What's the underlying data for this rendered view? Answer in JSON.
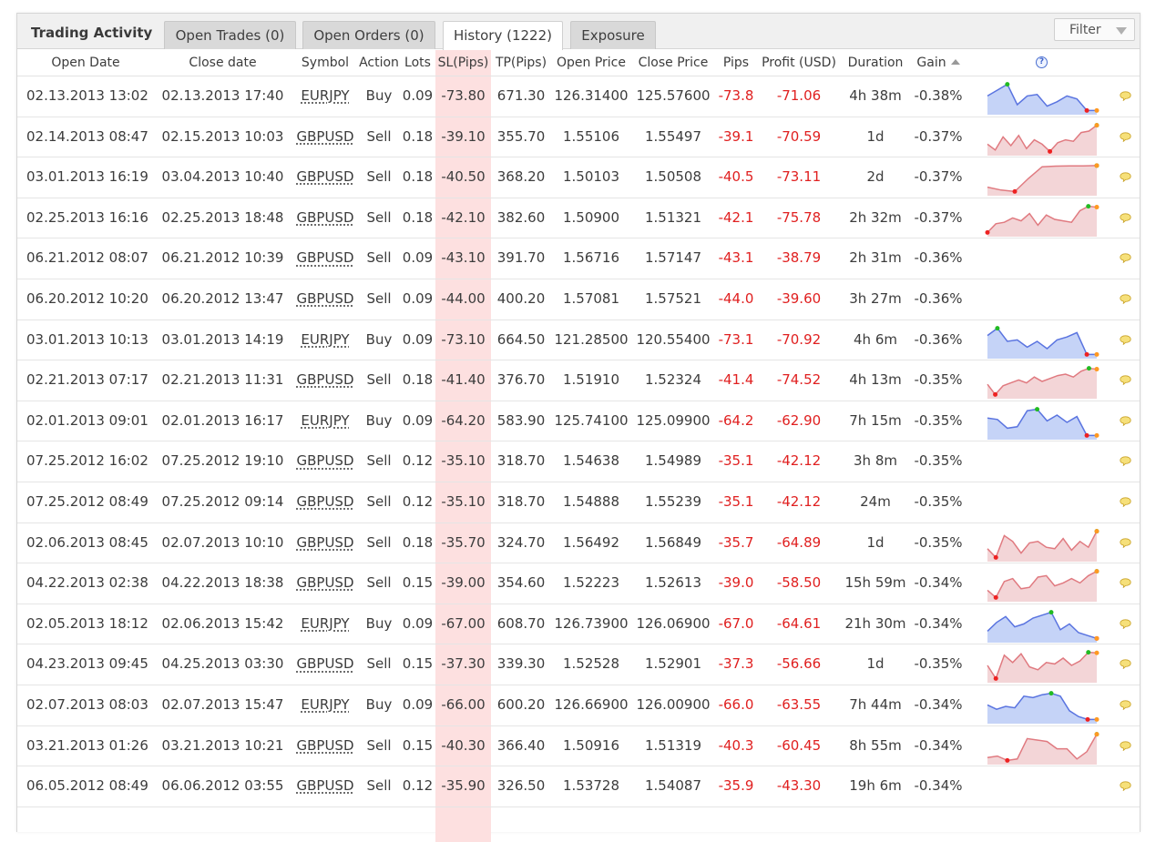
{
  "panel": {
    "title": "Trading Activity",
    "tabs": [
      {
        "label": "Open Trades (0)",
        "active": false
      },
      {
        "label": "Open Orders (0)",
        "active": false
      },
      {
        "label": "History (1222)",
        "active": true
      },
      {
        "label": "Exposure",
        "active": false
      }
    ],
    "filter_label": "Filter"
  },
  "columns": [
    "Open Date",
    "Close date",
    "Symbol",
    "Action",
    "Lots",
    "SL(Pips)",
    "TP(Pips)",
    "Open Price",
    "Close Price",
    "Pips",
    "Profit (USD)",
    "Duration",
    "Gain"
  ],
  "help_symbol": "?",
  "colors": {
    "negative": "#e02020",
    "sl_highlight": "#fde0e0",
    "spark_blue_fill": "#c5d3f7",
    "spark_blue_line": "#5a74e0",
    "spark_red_fill": "#f3d5d7",
    "spark_red_line": "#e07a80",
    "spark_max": "#22bb22",
    "spark_min": "#ee2222",
    "spark_end": "#ff9922"
  },
  "rows": [
    {
      "open_date": "02.13.2013 13:02",
      "close_date": "02.13.2013 17:40",
      "symbol": "EURJPY",
      "action": "Buy",
      "lots": "0.09",
      "sl": "-73.80",
      "tp": "671.30",
      "open_price": "126.31400",
      "close_price": "125.57600",
      "pips": "-73.8",
      "profit": "-71.06",
      "duration": "4h 38m",
      "gain": "-0.38%",
      "spark": {
        "color": "blue",
        "values": [
          0.55,
          0.75,
          0.95,
          0.25,
          0.55,
          0.6,
          0.2,
          0.35,
          0.55,
          0.45,
          0.05,
          0.05
        ]
      }
    },
    {
      "open_date": "02.14.2013 08:47",
      "close_date": "02.15.2013 10:03",
      "symbol": "GBPUSD",
      "action": "Sell",
      "lots": "0.18",
      "sl": "-39.10",
      "tp": "355.70",
      "open_price": "1.55106",
      "close_price": "1.55497",
      "pips": "-39.1",
      "profit": "-70.59",
      "duration": "1d",
      "gain": "-0.37%",
      "spark": {
        "color": "red",
        "values": [
          0.3,
          0.1,
          0.55,
          0.25,
          0.6,
          0.15,
          0.45,
          0.3,
          0.05,
          0.35,
          0.45,
          0.4,
          0.7,
          0.75,
          0.95
        ]
      }
    },
    {
      "open_date": "03.01.2013 16:19",
      "close_date": "03.04.2013 10:40",
      "symbol": "GBPUSD",
      "action": "Sell",
      "lots": "0.18",
      "sl": "-40.50",
      "tp": "368.20",
      "open_price": "1.50103",
      "close_price": "1.50508",
      "pips": "-40.5",
      "profit": "-73.11",
      "duration": "2d",
      "gain": "-0.37%",
      "spark": {
        "color": "red",
        "values": [
          0.2,
          0.1,
          0.05,
          0.5,
          0.9,
          0.92,
          0.93,
          0.93,
          0.94
        ]
      }
    },
    {
      "open_date": "02.25.2013 16:16",
      "close_date": "02.25.2013 18:48",
      "symbol": "GBPUSD",
      "action": "Sell",
      "lots": "0.18",
      "sl": "-42.10",
      "tp": "382.60",
      "open_price": "1.50900",
      "close_price": "1.51321",
      "pips": "-42.1",
      "profit": "-75.78",
      "duration": "2h 32m",
      "gain": "-0.37%",
      "spark": {
        "color": "red",
        "values": [
          0.05,
          0.35,
          0.4,
          0.55,
          0.45,
          0.7,
          0.3,
          0.65,
          0.5,
          0.45,
          0.4,
          0.8,
          0.95,
          0.92
        ]
      }
    },
    {
      "open_date": "06.21.2012 08:07",
      "close_date": "06.21.2012 10:39",
      "symbol": "GBPUSD",
      "action": "Sell",
      "lots": "0.09",
      "sl": "-43.10",
      "tp": "391.70",
      "open_price": "1.56716",
      "close_price": "1.57147",
      "pips": "-43.1",
      "profit": "-38.79",
      "duration": "2h 31m",
      "gain": "-0.36%",
      "spark": null
    },
    {
      "open_date": "06.20.2012 10:20",
      "close_date": "06.20.2012 13:47",
      "symbol": "GBPUSD",
      "action": "Sell",
      "lots": "0.09",
      "sl": "-44.00",
      "tp": "400.20",
      "open_price": "1.57081",
      "close_price": "1.57521",
      "pips": "-44.0",
      "profit": "-39.60",
      "duration": "3h 27m",
      "gain": "-0.36%",
      "spark": null
    },
    {
      "open_date": "03.01.2013 10:13",
      "close_date": "03.01.2013 14:19",
      "symbol": "EURJPY",
      "action": "Buy",
      "lots": "0.09",
      "sl": "-73.10",
      "tp": "664.50",
      "open_price": "121.28500",
      "close_price": "120.55400",
      "pips": "-73.1",
      "profit": "-70.92",
      "duration": "4h 6m",
      "gain": "-0.36%",
      "spark": {
        "color": "blue",
        "values": [
          0.7,
          0.95,
          0.5,
          0.55,
          0.3,
          0.5,
          0.25,
          0.55,
          0.65,
          0.8,
          0.05,
          0.05
        ]
      }
    },
    {
      "open_date": "02.21.2013 07:17",
      "close_date": "02.21.2013 11:31",
      "symbol": "GBPUSD",
      "action": "Sell",
      "lots": "0.18",
      "sl": "-41.40",
      "tp": "376.70",
      "open_price": "1.51910",
      "close_price": "1.52324",
      "pips": "-41.4",
      "profit": "-74.52",
      "duration": "4h 13m",
      "gain": "-0.35%",
      "spark": {
        "color": "red",
        "values": [
          0.4,
          0.05,
          0.35,
          0.45,
          0.55,
          0.45,
          0.65,
          0.5,
          0.6,
          0.7,
          0.75,
          0.65,
          0.85,
          0.95,
          0.92
        ]
      }
    },
    {
      "open_date": "02.01.2013 09:01",
      "close_date": "02.01.2013 16:17",
      "symbol": "EURJPY",
      "action": "Buy",
      "lots": "0.09",
      "sl": "-64.20",
      "tp": "583.90",
      "open_price": "125.74100",
      "close_price": "125.09900",
      "pips": "-64.2",
      "profit": "-62.90",
      "duration": "7h 15m",
      "gain": "-0.35%",
      "spark": {
        "color": "blue",
        "values": [
          0.65,
          0.6,
          0.3,
          0.35,
          0.9,
          0.95,
          0.55,
          0.75,
          0.5,
          0.7,
          0.05,
          0.05
        ]
      }
    },
    {
      "open_date": "07.25.2012 16:02",
      "close_date": "07.25.2012 19:10",
      "symbol": "GBPUSD",
      "action": "Sell",
      "lots": "0.12",
      "sl": "-35.10",
      "tp": "318.70",
      "open_price": "1.54638",
      "close_price": "1.54989",
      "pips": "-35.1",
      "profit": "-42.12",
      "duration": "3h 8m",
      "gain": "-0.35%",
      "spark": null
    },
    {
      "open_date": "07.25.2012 08:49",
      "close_date": "07.25.2012 09:14",
      "symbol": "GBPUSD",
      "action": "Sell",
      "lots": "0.12",
      "sl": "-35.10",
      "tp": "318.70",
      "open_price": "1.54888",
      "close_price": "1.55239",
      "pips": "-35.1",
      "profit": "-42.12",
      "duration": "24m",
      "gain": "-0.35%",
      "spark": null
    },
    {
      "open_date": "02.06.2013 08:45",
      "close_date": "02.07.2013 10:10",
      "symbol": "GBPUSD",
      "action": "Sell",
      "lots": "0.18",
      "sl": "-35.70",
      "tp": "324.70",
      "open_price": "1.56492",
      "close_price": "1.56849",
      "pips": "-35.7",
      "profit": "-64.89",
      "duration": "1d",
      "gain": "-0.35%",
      "spark": {
        "color": "red",
        "values": [
          0.35,
          0.05,
          0.8,
          0.6,
          0.2,
          0.55,
          0.6,
          0.4,
          0.35,
          0.7,
          0.3,
          0.6,
          0.4,
          0.95
        ]
      }
    },
    {
      "open_date": "04.22.2013 02:38",
      "close_date": "04.22.2013 18:38",
      "symbol": "GBPUSD",
      "action": "Sell",
      "lots": "0.15",
      "sl": "-39.00",
      "tp": "354.60",
      "open_price": "1.52223",
      "close_price": "1.52613",
      "pips": "-39.0",
      "profit": "-58.50",
      "duration": "15h 59m",
      "gain": "-0.34%",
      "spark": {
        "color": "red",
        "values": [
          0.3,
          0.05,
          0.6,
          0.7,
          0.35,
          0.4,
          0.75,
          0.8,
          0.45,
          0.55,
          0.7,
          0.55,
          0.8,
          0.95
        ]
      }
    },
    {
      "open_date": "02.05.2013 18:12",
      "close_date": "02.06.2013 15:42",
      "symbol": "EURJPY",
      "action": "Buy",
      "lots": "0.09",
      "sl": "-67.00",
      "tp": "608.70",
      "open_price": "126.73900",
      "close_price": "126.06900",
      "pips": "-67.0",
      "profit": "-64.61",
      "duration": "21h 30m",
      "gain": "-0.34%",
      "spark": {
        "color": "blue",
        "values": [
          0.3,
          0.6,
          0.8,
          0.45,
          0.55,
          0.75,
          0.85,
          0.95,
          0.35,
          0.55,
          0.25,
          0.15,
          0.05
        ]
      }
    },
    {
      "open_date": "04.23.2013 09:45",
      "close_date": "04.25.2013 03:30",
      "symbol": "GBPUSD",
      "action": "Sell",
      "lots": "0.15",
      "sl": "-37.30",
      "tp": "339.30",
      "open_price": "1.52528",
      "close_price": "1.52901",
      "pips": "-37.3",
      "profit": "-56.66",
      "duration": "1d",
      "gain": "-0.35%",
      "spark": {
        "color": "red",
        "values": [
          0.5,
          0.05,
          0.85,
          0.6,
          0.9,
          0.45,
          0.35,
          0.6,
          0.55,
          0.75,
          0.5,
          0.65,
          0.95,
          0.93
        ]
      }
    },
    {
      "open_date": "02.07.2013 08:03",
      "close_date": "02.07.2013 15:47",
      "symbol": "EURJPY",
      "action": "Buy",
      "lots": "0.09",
      "sl": "-66.00",
      "tp": "600.20",
      "open_price": "126.66900",
      "close_price": "126.00900",
      "pips": "-66.0",
      "profit": "-63.55",
      "duration": "7h 44m",
      "gain": "-0.34%",
      "spark": {
        "color": "blue",
        "values": [
          0.55,
          0.4,
          0.5,
          0.45,
          0.85,
          0.8,
          0.9,
          0.95,
          0.85,
          0.35,
          0.15,
          0.05,
          0.05
        ]
      }
    },
    {
      "open_date": "03.21.2013 01:26",
      "close_date": "03.21.2013 10:21",
      "symbol": "GBPUSD",
      "action": "Sell",
      "lots": "0.15",
      "sl": "-40.30",
      "tp": "366.40",
      "open_price": "1.50916",
      "close_price": "1.51319",
      "pips": "-40.3",
      "profit": "-60.45",
      "duration": "8h 55m",
      "gain": "-0.34%",
      "spark": {
        "color": "red",
        "values": [
          0.15,
          0.2,
          0.05,
          0.1,
          0.8,
          0.75,
          0.7,
          0.45,
          0.45,
          0.1,
          0.35,
          0.95
        ]
      }
    },
    {
      "open_date": "06.05.2012 08:49",
      "close_date": "06.06.2012 03:55",
      "symbol": "GBPUSD",
      "action": "Sell",
      "lots": "0.12",
      "sl": "-35.90",
      "tp": "326.50",
      "open_price": "1.53728",
      "close_price": "1.54087",
      "pips": "-35.9",
      "profit": "-43.30",
      "duration": "19h 6m",
      "gain": "-0.34%",
      "spark": null
    }
  ]
}
